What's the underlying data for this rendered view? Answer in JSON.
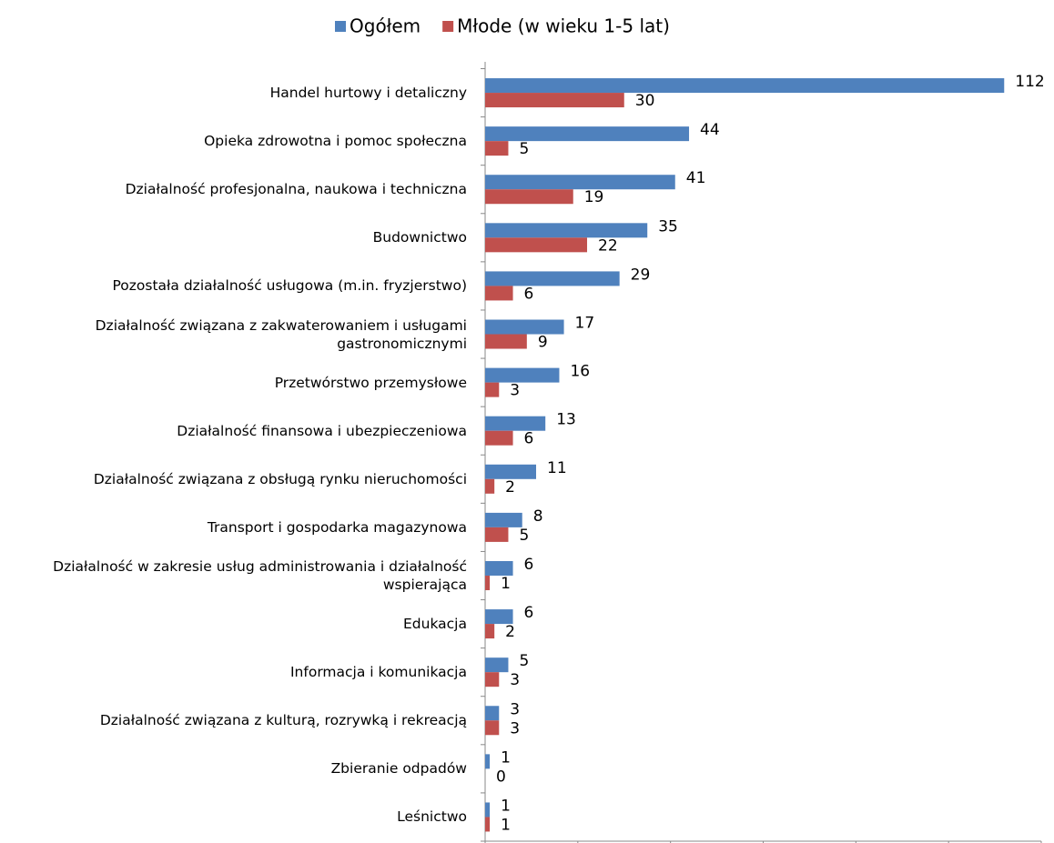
{
  "chart_data": {
    "type": "hbar",
    "categories": [
      "Handel hurtowy i detaliczny",
      "Opieka zdrowotna i pomoc społeczna",
      "Działalność profesjonalna, naukowa i techniczna",
      "Budownictwo",
      "Pozostała działalność usługowa (m.in. fryzjerstwo)",
      "Działalność związana z zakwaterowaniem i usługami gastronomicznymi",
      "Przetwórstwo przemysłowe",
      "Działalność finansowa i ubezpieczeniowa",
      "Działalność związana z obsługą rynku nieruchomości",
      "Transport i gospodarka magazynowa",
      "Działalność w zakresie usług administrowania i działalność wspierająca",
      "Edukacja",
      "Informacja i komunikacja",
      "Działalność związana z kulturą, rozrywką i rekreacją",
      "Zbieranie odpadów",
      "Leśnictwo"
    ],
    "series": [
      {
        "name": "Ogółem",
        "color": "#4f81bd",
        "values": [
          112,
          44,
          41,
          35,
          29,
          17,
          16,
          13,
          11,
          8,
          6,
          6,
          5,
          3,
          1,
          1
        ]
      },
      {
        "name": "Młode (w wieku 1-5 lat)",
        "color": "#c0504d",
        "values": [
          30,
          5,
          19,
          22,
          6,
          9,
          3,
          6,
          2,
          5,
          1,
          2,
          3,
          3,
          0,
          1
        ]
      }
    ],
    "xlim": [
      0,
      120
    ],
    "xticks": [
      0,
      20,
      40,
      60,
      80,
      100,
      120
    ],
    "legend": "top"
  }
}
